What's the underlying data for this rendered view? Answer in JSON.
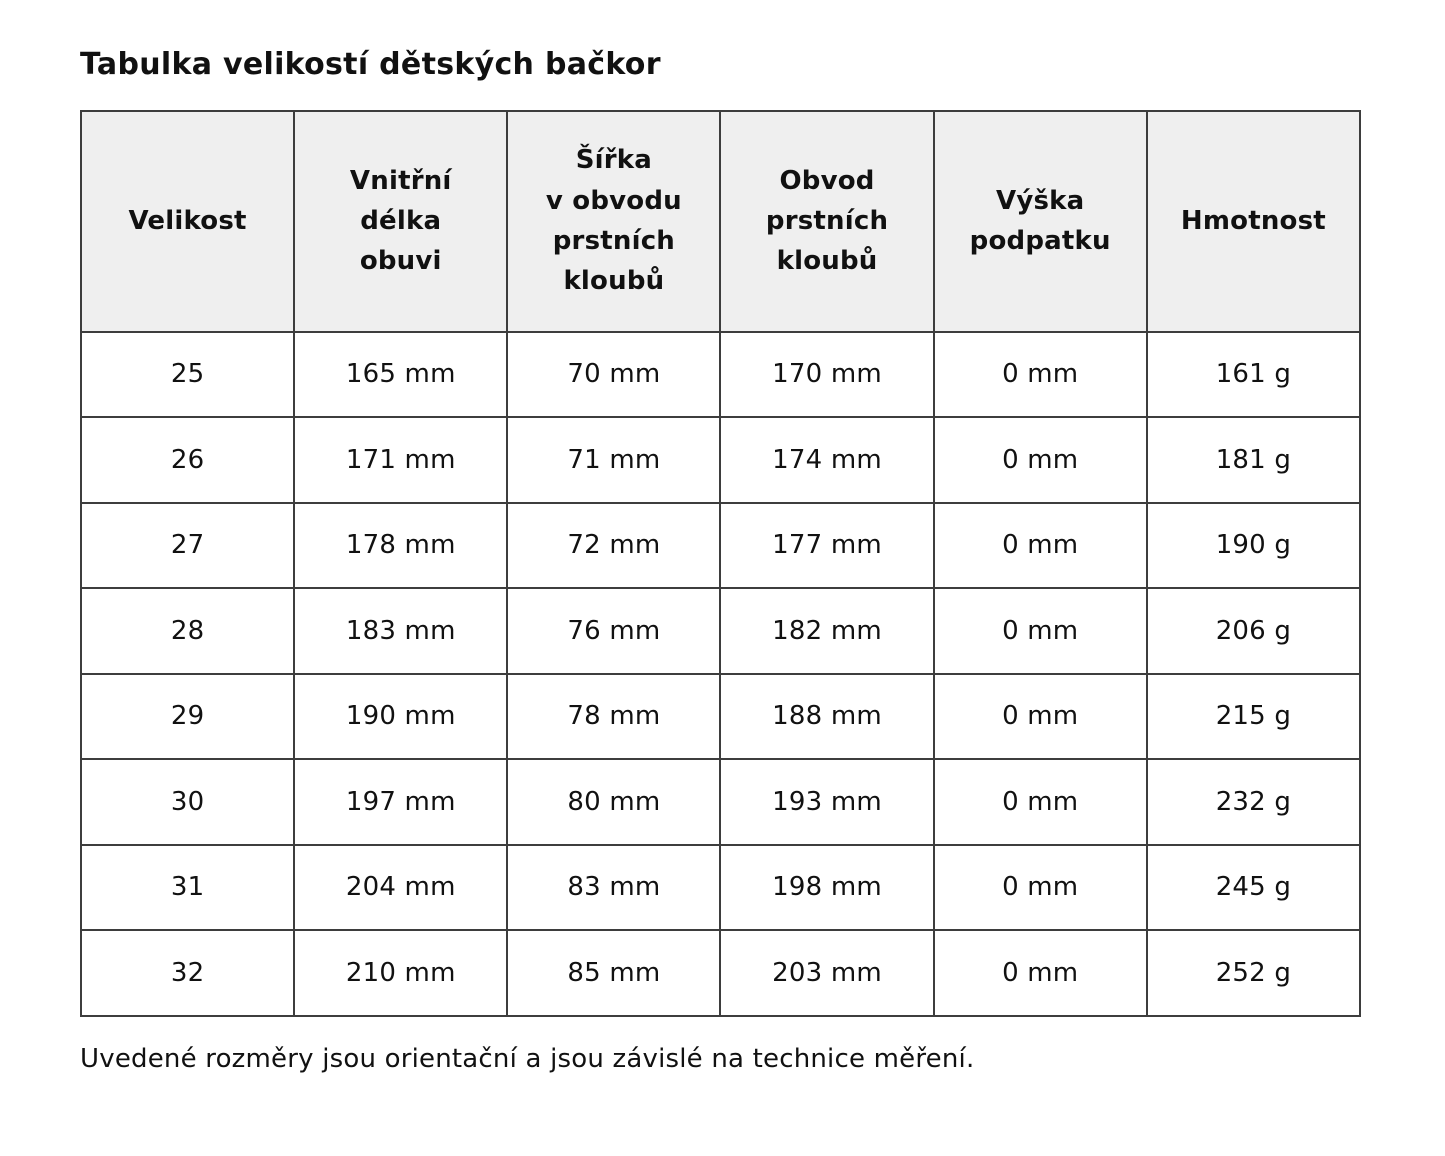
{
  "page": {
    "title": "Tabulka velikostí dětských bačkor",
    "footnote": "Uvedené rozměry jsou orientační a jsou závislé na technice měření."
  },
  "colors": {
    "header_bg": "#efefef",
    "border": "#3d3d3d",
    "text": "#111111",
    "page_bg": "#ffffff"
  },
  "table": {
    "header_display": [
      {
        "label": "Velikost"
      },
      {
        "label": "Vnitřní\ndélka\nobuvi"
      },
      {
        "label": "Šířka\nv obvodu\nprstních\nkloubů"
      },
      {
        "label": "Obvod\nprstních\nkloubů"
      },
      {
        "label": "Výška\npodpatku"
      },
      {
        "label": "Hmotnost"
      }
    ]
  },
  "chart_data": {
    "type": "table",
    "title": "Tabulka velikostí dětských bačkor",
    "columns": [
      "Velikost",
      "Vnitřní délka obuvi",
      "Šířka v obvodu prstních kloubů",
      "Obvod prstních kloubů",
      "Výška podpatku",
      "Hmotnost"
    ],
    "rows": [
      [
        "25",
        "165 mm",
        "70 mm",
        "170 mm",
        "0 mm",
        "161 g"
      ],
      [
        "26",
        "171 mm",
        "71 mm",
        "174 mm",
        "0 mm",
        "181 g"
      ],
      [
        "27",
        "178 mm",
        "72 mm",
        "177 mm",
        "0 mm",
        "190 g"
      ],
      [
        "28",
        "183 mm",
        "76 mm",
        "182 mm",
        "0 mm",
        "206 g"
      ],
      [
        "29",
        "190 mm",
        "78 mm",
        "188 mm",
        "0 mm",
        "215 g"
      ],
      [
        "30",
        "197 mm",
        "80 mm",
        "193 mm",
        "0 mm",
        "232 g"
      ],
      [
        "31",
        "204 mm",
        "83 mm",
        "198 mm",
        "0 mm",
        "245 g"
      ],
      [
        "32",
        "210 mm",
        "85 mm",
        "203 mm",
        "0 mm",
        "252 g"
      ]
    ],
    "footnote": "Uvedené rozměry jsou orientační a jsou závislé na technice měření."
  }
}
